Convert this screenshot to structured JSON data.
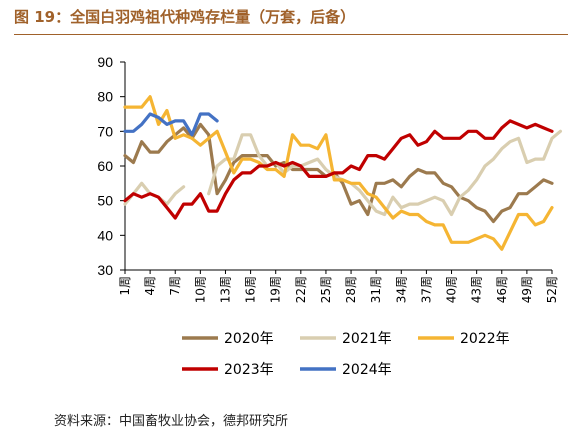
{
  "title": "图 19：全国白羽鸡祖代种鸡存栏量（万套，后备）",
  "source": "资料来源：中国畜牧业协会，德邦研究所",
  "chart_data": {
    "type": "line",
    "ylim": [
      30,
      90
    ],
    "yticks": [
      30,
      40,
      50,
      60,
      70,
      80,
      90
    ],
    "x_tick_labels": [
      "1周",
      "4周",
      "7周",
      "10周",
      "13周",
      "16周",
      "19周",
      "22周",
      "25周",
      "28周",
      "31周",
      "34周",
      "37周",
      "40周",
      "43周",
      "46周",
      "49周",
      "52周"
    ],
    "x_tick_weeks": [
      1,
      4,
      7,
      10,
      13,
      16,
      19,
      22,
      25,
      28,
      31,
      34,
      37,
      40,
      43,
      46,
      49,
      52
    ],
    "grid": false,
    "legend_position": "bottom",
    "series": [
      {
        "name": "2020年",
        "color": "#9c7a4e",
        "values": [
          63,
          61,
          67,
          64,
          64,
          67,
          69,
          71,
          68,
          72,
          69,
          52,
          56,
          61,
          63,
          63,
          63,
          63,
          60,
          61,
          59,
          59,
          59,
          59,
          57,
          58,
          55,
          49,
          50,
          46,
          55,
          55,
          56,
          54,
          57,
          59,
          58,
          58,
          55,
          54,
          51,
          50,
          48,
          47,
          44,
          47,
          48,
          52,
          52,
          54,
          56,
          55
        ]
      },
      {
        "name": "2021年",
        "color": "#d9ceb0",
        "values": [
          49,
          52,
          55,
          52,
          51,
          49,
          52,
          54,
          null,
          null,
          52,
          60,
          62,
          62,
          69,
          69,
          63,
          60,
          61,
          58,
          60,
          60,
          61,
          62,
          59,
          57,
          56,
          55,
          53,
          50,
          47,
          46,
          51,
          48,
          49,
          49,
          50,
          51,
          50,
          46,
          51,
          53,
          56,
          60,
          62,
          65,
          67,
          68,
          61,
          62,
          62,
          68,
          70
        ]
      },
      {
        "name": "2022年",
        "color": "#f5b533",
        "values": [
          77,
          77,
          77,
          80,
          72,
          76,
          68,
          69,
          68,
          66,
          68,
          70,
          64,
          58,
          62,
          62,
          61,
          59,
          59,
          57,
          69,
          66,
          66,
          65,
          69,
          56,
          56,
          55,
          55,
          52,
          51,
          48,
          45,
          47,
          46,
          46,
          44,
          43,
          43,
          38,
          38,
          38,
          39,
          40,
          39,
          36,
          41,
          46,
          46,
          43,
          44,
          48
        ]
      },
      {
        "name": "2023年",
        "color": "#c00000",
        "values": [
          50,
          52,
          51,
          52,
          51,
          48,
          45,
          49,
          49,
          52,
          47,
          47,
          52,
          56,
          58,
          58,
          60,
          60,
          61,
          60,
          61,
          60,
          57,
          57,
          57,
          58,
          58,
          60,
          59,
          63,
          63,
          62,
          65,
          68,
          69,
          66,
          67,
          70,
          68,
          68,
          68,
          70,
          70,
          68,
          68,
          71,
          73,
          72,
          71,
          72,
          71,
          70
        ]
      },
      {
        "name": "2024年",
        "color": "#4472c4",
        "values": [
          70,
          70,
          72,
          75,
          74,
          72,
          73,
          73,
          69,
          75,
          75,
          73
        ]
      }
    ]
  }
}
